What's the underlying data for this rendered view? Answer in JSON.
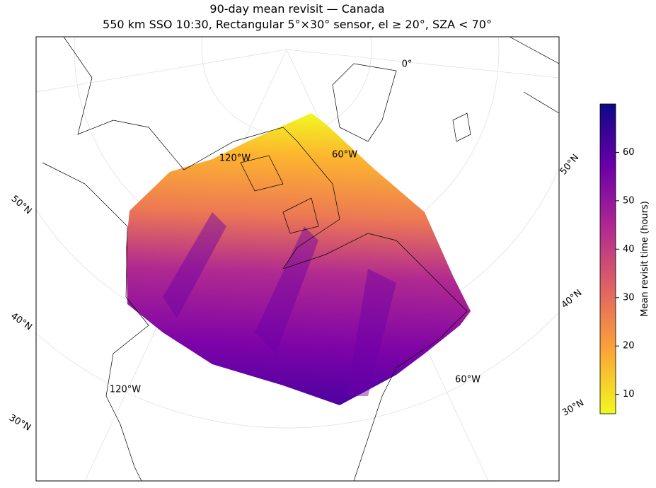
{
  "title": "90-day mean revisit — Canada",
  "subtitle": "550 km SSO 10:30, Rectangular 5°×30° sensor, el ≥ 20°, SZA < 70°",
  "map": {
    "graticule_labels": [
      "0°",
      "120°W",
      "60°W",
      "50°N",
      "40°N",
      "30°N",
      "120°W",
      "60°W",
      "50°N",
      "40°N",
      "30°N"
    ]
  },
  "colorbar": {
    "label": "Mean revisit time (hours)",
    "lim": [
      6,
      70
    ],
    "ticks": [
      10,
      20,
      30,
      40,
      50,
      60
    ]
  }
}
